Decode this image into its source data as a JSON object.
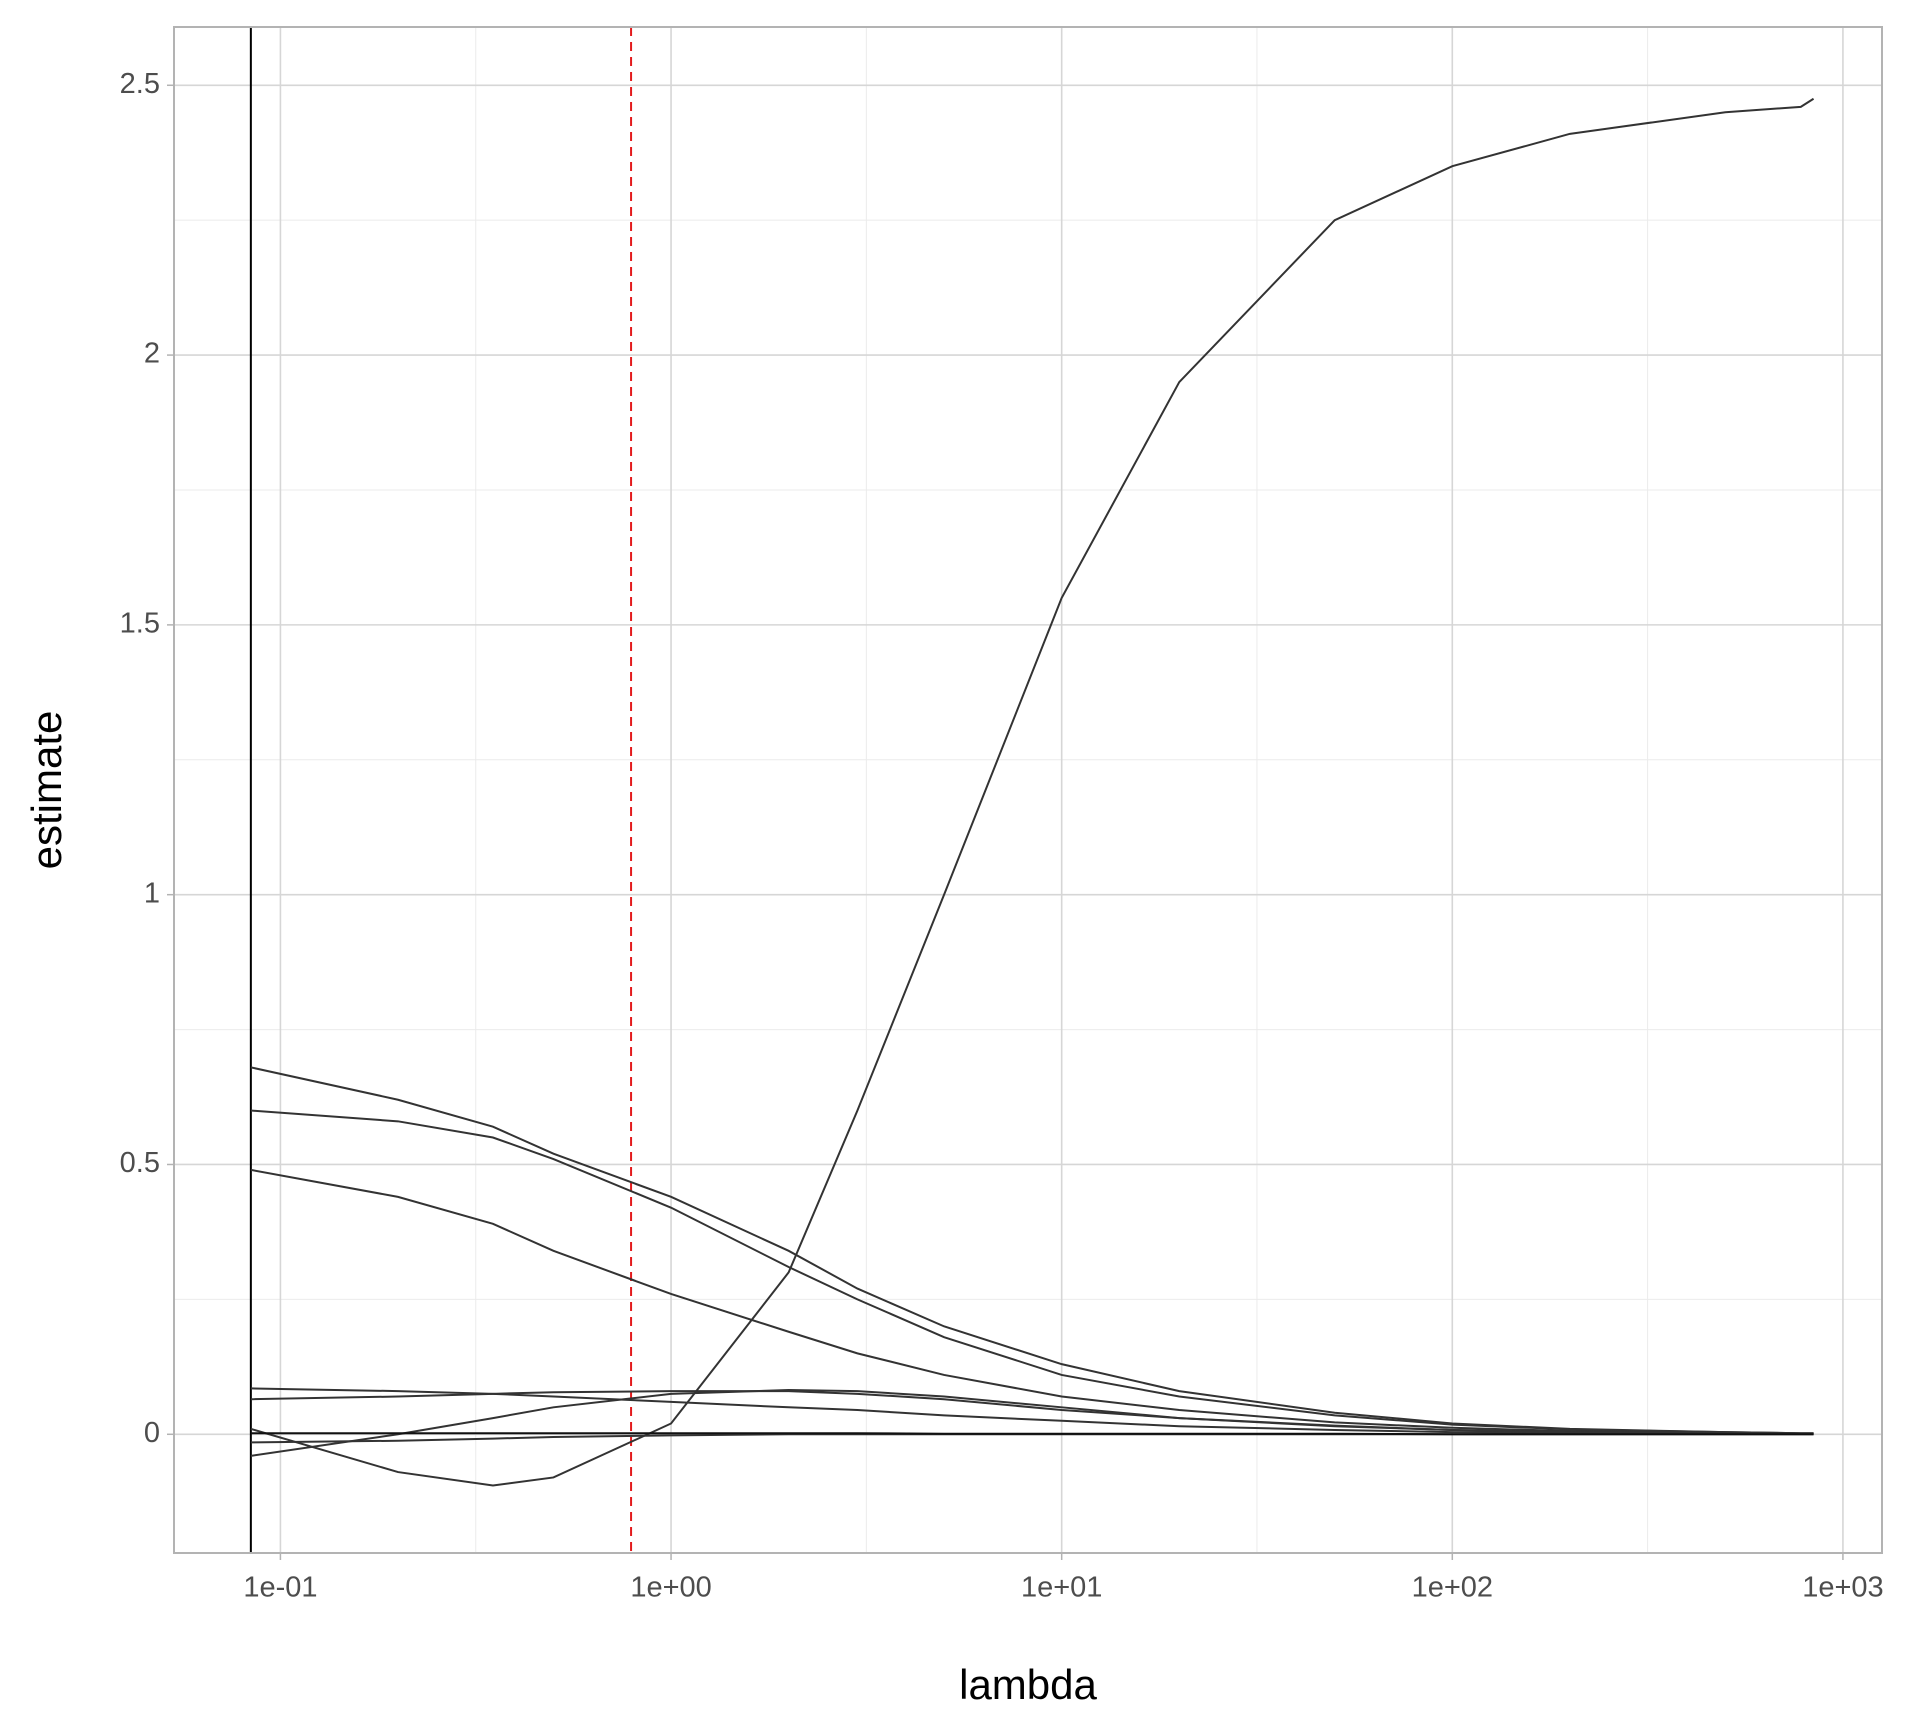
{
  "chart_data": {
    "type": "line",
    "x_label": "lambda",
    "y_label": "estimate",
    "log_x": true,
    "grid": true,
    "xlim": [
      0.0534,
      1259
    ],
    "ylim": [
      -0.22,
      2.608
    ],
    "xticks": [
      {
        "value": 0.1,
        "label": "1e-01"
      },
      {
        "value": 1,
        "label": "1e+00"
      },
      {
        "value": 10,
        "label": "1e+01"
      },
      {
        "value": 100,
        "label": "1e+02"
      },
      {
        "value": 1000,
        "label": "1e+03"
      }
    ],
    "xminor": [
      0.3162,
      3.162,
      31.62,
      316.2
    ],
    "yticks": [
      0,
      0.5,
      1,
      1.5,
      2,
      2.5
    ],
    "yminor": [
      0.25,
      0.75,
      1.25,
      1.75,
      2.25
    ],
    "vlines": [
      {
        "value": 0.084,
        "color": "#000000",
        "dashed": false
      },
      {
        "value": 0.79,
        "color": "#e31a1c",
        "dashed": true
      }
    ],
    "x": [
      0.084,
      0.2,
      0.35,
      0.5,
      1,
      2,
      3,
      5,
      10,
      20,
      50,
      100,
      200,
      500,
      780,
      841
    ],
    "series": [
      {
        "color": "#333333",
        "values": [
          0.01,
          -0.07,
          -0.095,
          -0.08,
          0.02,
          0.3,
          0.6,
          1.0,
          1.55,
          1.95,
          2.25,
          2.35,
          2.41,
          2.45,
          2.46,
          2.475
        ]
      },
      {
        "color": "#333333",
        "values": [
          0.68,
          0.62,
          0.57,
          0.52,
          0.44,
          0.34,
          0.27,
          0.2,
          0.13,
          0.08,
          0.04,
          0.02,
          0.01,
          0.004,
          0.002,
          0.002
        ]
      },
      {
        "color": "#333333",
        "values": [
          0.6,
          0.58,
          0.55,
          0.51,
          0.42,
          0.31,
          0.25,
          0.18,
          0.11,
          0.07,
          0.035,
          0.018,
          0.009,
          0.004,
          0.002,
          0.002
        ]
      },
      {
        "color": "#333333",
        "values": [
          0.49,
          0.44,
          0.39,
          0.34,
          0.26,
          0.19,
          0.15,
          0.11,
          0.07,
          0.045,
          0.022,
          0.012,
          0.006,
          0.002,
          0.001,
          0.001
        ]
      },
      {
        "color": "#333333",
        "values": [
          0.085,
          0.08,
          0.075,
          0.07,
          0.06,
          0.05,
          0.045,
          0.035,
          0.025,
          0.015,
          0.008,
          0.004,
          0.002,
          0.001,
          0.0005,
          0.0005
        ]
      },
      {
        "color": "#333333",
        "values": [
          0.065,
          0.07,
          0.075,
          0.078,
          0.08,
          0.08,
          0.075,
          0.065,
          0.045,
          0.03,
          0.015,
          0.008,
          0.004,
          0.002,
          0.001,
          0.001
        ]
      },
      {
        "color": "#333333",
        "values": [
          -0.04,
          0.0,
          0.03,
          0.05,
          0.075,
          0.082,
          0.08,
          0.07,
          0.05,
          0.03,
          0.016,
          0.008,
          0.004,
          0.002,
          0.001,
          0.001
        ]
      },
      {
        "color": "#333333",
        "values": [
          -0.015,
          -0.012,
          -0.008,
          -0.005,
          -0.002,
          0,
          0,
          0,
          0,
          0,
          0,
          0,
          0,
          0,
          0,
          0
        ]
      },
      {
        "color": "#111111",
        "values": [
          0.002,
          0.002,
          0.002,
          0.002,
          0.002,
          0.002,
          0.002,
          0.001,
          0.001,
          0.001,
          0.001,
          0,
          0,
          0,
          0,
          0
        ]
      }
    ]
  }
}
